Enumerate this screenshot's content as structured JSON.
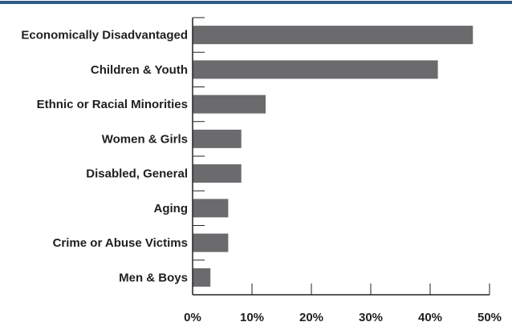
{
  "chart_data": {
    "type": "bar",
    "orientation": "horizontal",
    "categories": [
      "Economically Disadvantaged",
      "Children & Youth",
      "Ethnic or Racial Minorities",
      "Women & Girls",
      "Disabled, General",
      "Aging",
      "Crime or Abuse Victims",
      "Men & Boys"
    ],
    "values": [
      47.2,
      41.3,
      12.3,
      8.2,
      8.2,
      6.0,
      6.0,
      3.0
    ],
    "x_ticks": [
      "0%",
      "10%",
      "20%",
      "30%",
      "40%",
      "50%"
    ],
    "xlim": [
      0,
      50
    ],
    "title": "",
    "xlabel": "",
    "ylabel": "",
    "grid": false,
    "legend": "none",
    "colors": {
      "bar": "#6b6b6e",
      "axis": "#222222",
      "header_rule": "#2e5a86",
      "text": "#1f1f1f"
    }
  }
}
